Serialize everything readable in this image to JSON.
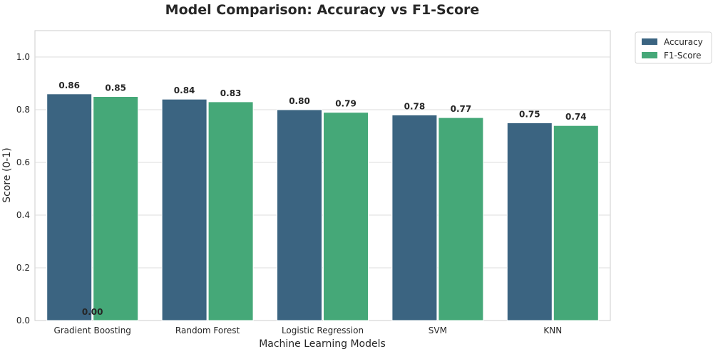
{
  "chart_data": {
    "type": "bar",
    "title": "Model Comparison: Accuracy vs F1-Score",
    "xlabel": "Machine Learning Models",
    "ylabel": "Score (0-1)",
    "categories": [
      "Gradient Boosting",
      "Random Forest",
      "Logistic Regression",
      "SVM",
      "KNN"
    ],
    "series": [
      {
        "name": "Accuracy",
        "color": "#3b6481",
        "values": [
          0.86,
          0.84,
          0.8,
          0.78,
          0.75
        ],
        "labels": [
          "0.86",
          "0.84",
          "0.80",
          "0.78",
          "0.75"
        ]
      },
      {
        "name": "F1-Score",
        "color": "#45a878",
        "values": [
          0.85,
          0.83,
          0.79,
          0.77,
          0.74
        ],
        "labels": [
          "0.85",
          "0.83",
          "0.79",
          "0.77",
          "0.74"
        ]
      }
    ],
    "extra_annotations": [
      "0.00"
    ],
    "ylim": [
      0,
      1.1
    ],
    "yticks": [
      "0.0",
      "0.2",
      "0.4",
      "0.6",
      "0.8",
      "1.0"
    ],
    "grid": true,
    "legend_position": "outside top-right"
  }
}
